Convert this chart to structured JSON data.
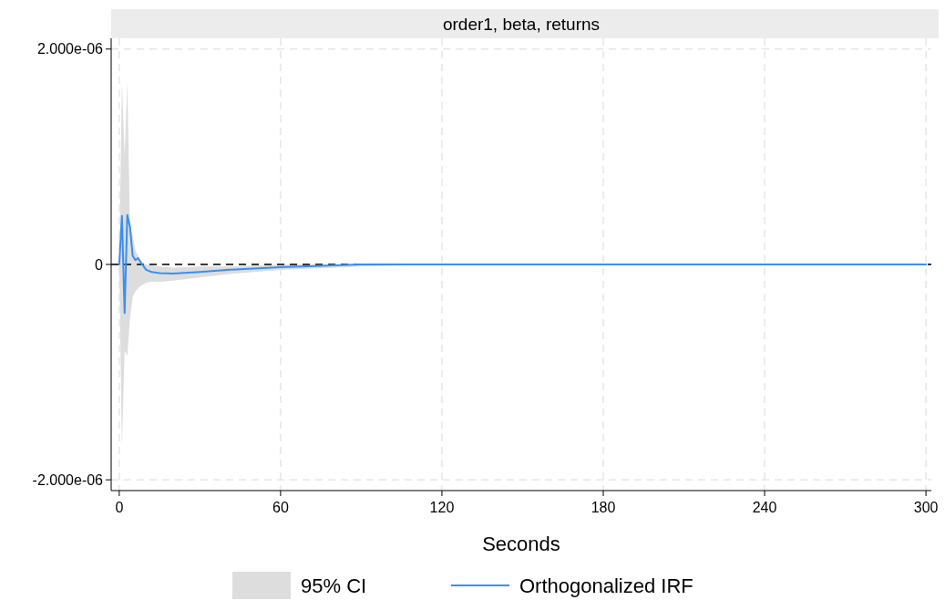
{
  "chart_data": {
    "type": "line",
    "title": "order1, beta, returns",
    "xlabel": "Seconds",
    "xlim": [
      -3,
      302
    ],
    "xticks": [
      0,
      60,
      120,
      180,
      240,
      300
    ],
    "ylim": [
      -2.1e-06,
      2.1e-06
    ],
    "yticks": [
      {
        "value": 2e-06,
        "label": "2.000e-06"
      },
      0,
      {
        "value": -2e-06,
        "label": "-2.000e-06"
      }
    ],
    "grid": true,
    "legend": "bottom",
    "annotations": [
      "95% CI"
    ],
    "ref_lines": [
      {
        "axis": "y",
        "value": 0,
        "color": "#000000",
        "line_style": "dashed"
      }
    ],
    "series": [
      {
        "name": "Orthogonalized IRF",
        "color": "#3a8ff0",
        "x": [
          0,
          1,
          2,
          3,
          4,
          5,
          6,
          7,
          8,
          10,
          12,
          15,
          20,
          30,
          40,
          60,
          90,
          120,
          180,
          240,
          300
        ],
        "values": [
          0,
          4.5e-07,
          -4.5e-07,
          4.6e-07,
          3.5e-07,
          8e-08,
          4e-08,
          6e-08,
          2e-08,
          -5e-08,
          -7e-08,
          -8e-08,
          -8.5e-08,
          -7e-08,
          -5e-08,
          -2.5e-08,
          0,
          0,
          0,
          0,
          0
        ],
        "lower": [
          0,
          -1.7e-06,
          -8e-07,
          -8.5e-07,
          -5e-07,
          -3e-07,
          -2.5e-07,
          -2.2e-07,
          -2e-07,
          -1.7e-07,
          -1.6e-07,
          -1.6e-07,
          -1.5e-07,
          -1.2e-07,
          -9e-08,
          -5e-08,
          -2e-08,
          0,
          0,
          0,
          0
        ],
        "upper": [
          0,
          1.7e-06,
          1e-06,
          1.7e-06,
          3.5e-07,
          2.7e-07,
          1.3e-07,
          8e-08,
          2e-08,
          0,
          -1e-08,
          -2e-08,
          -3e-08,
          -2e-08,
          -2e-08,
          0,
          0,
          0,
          0,
          0,
          0
        ]
      }
    ]
  }
}
